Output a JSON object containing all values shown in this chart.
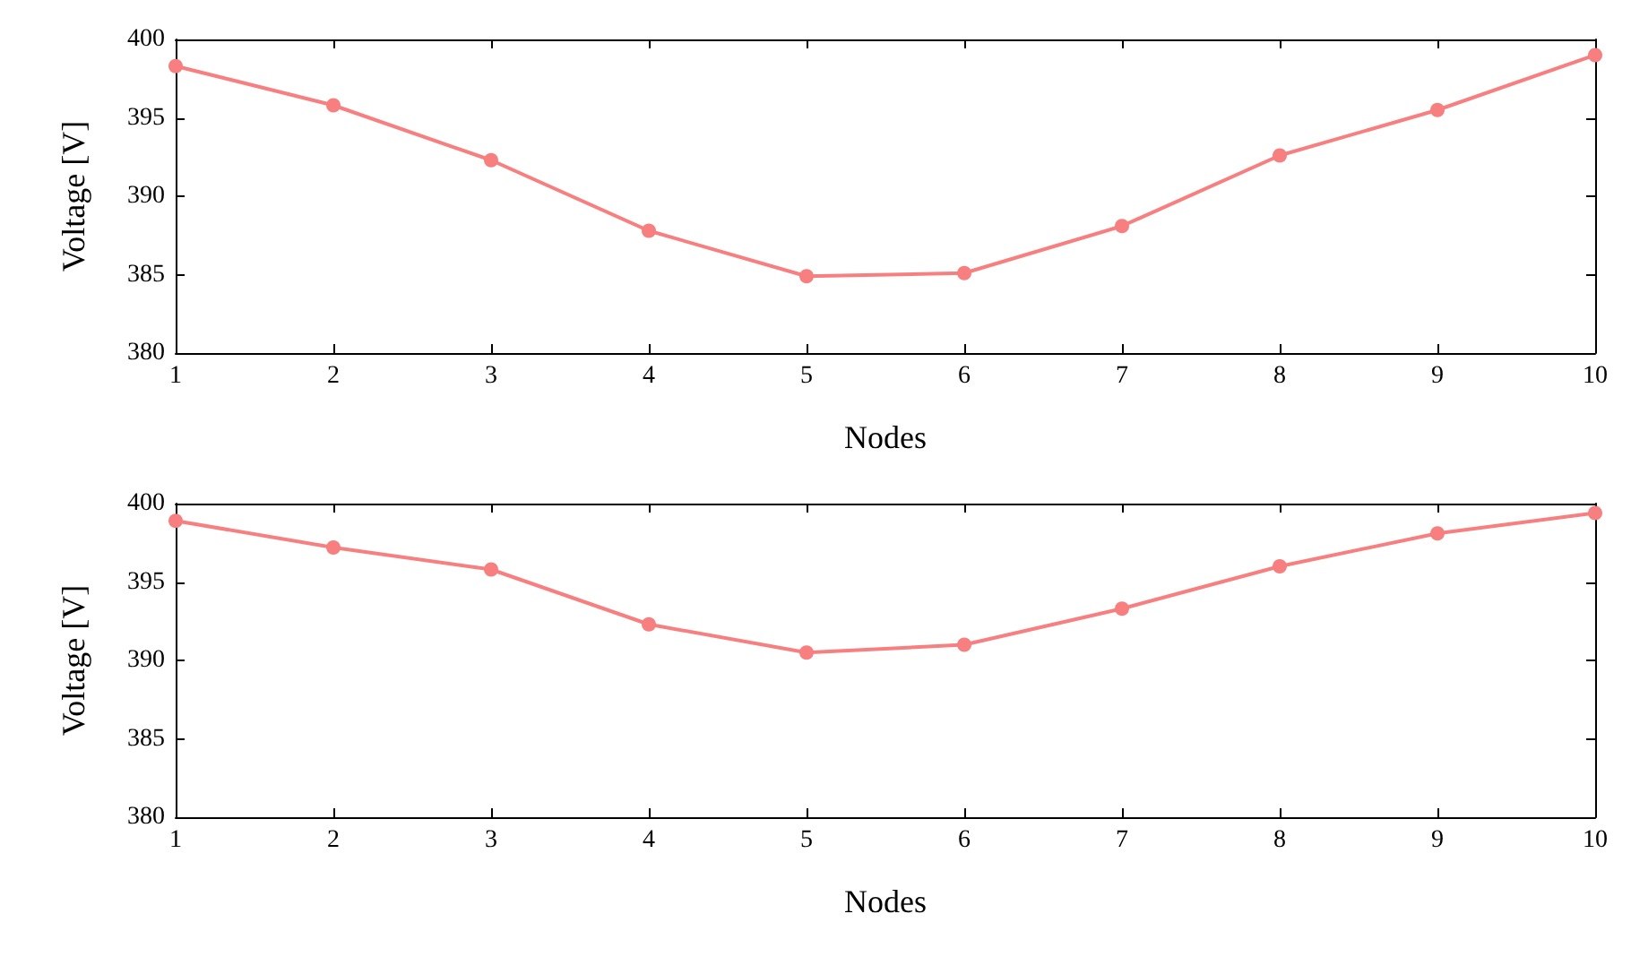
{
  "chart_data": [
    {
      "type": "line",
      "xlabel": "Nodes",
      "ylabel": "Voltage [V]",
      "x": [
        1,
        2,
        3,
        4,
        5,
        6,
        7,
        8,
        9,
        10
      ],
      "series": [
        {
          "color": "#f77f7f",
          "values": [
            398.3,
            395.8,
            392.3,
            387.8,
            384.9,
            385.1,
            388.1,
            392.6,
            395.5,
            399.0
          ]
        }
      ],
      "xlim": [
        1,
        10
      ],
      "xticks": [
        1,
        2,
        3,
        4,
        5,
        6,
        7,
        8,
        9,
        10
      ],
      "ylim": [
        380,
        400
      ],
      "yticks": [
        380,
        385,
        390,
        395,
        400
      ],
      "grid": false,
      "marker": "circle",
      "line_style": "solid"
    },
    {
      "type": "line",
      "xlabel": "Nodes",
      "ylabel": "Voltage [V]",
      "x": [
        1,
        2,
        3,
        4,
        5,
        6,
        7,
        8,
        9,
        10
      ],
      "series": [
        {
          "color": "#f77f7f",
          "values": [
            398.9,
            397.2,
            395.8,
            392.3,
            390.5,
            391.0,
            393.3,
            396.0,
            398.1,
            399.4
          ]
        }
      ],
      "xlim": [
        1,
        10
      ],
      "xticks": [
        1,
        2,
        3,
        4,
        5,
        6,
        7,
        8,
        9,
        10
      ],
      "ylim": [
        380,
        400
      ],
      "yticks": [
        380,
        385,
        390,
        395,
        400
      ],
      "grid": false,
      "marker": "circle",
      "line_style": "solid"
    }
  ]
}
